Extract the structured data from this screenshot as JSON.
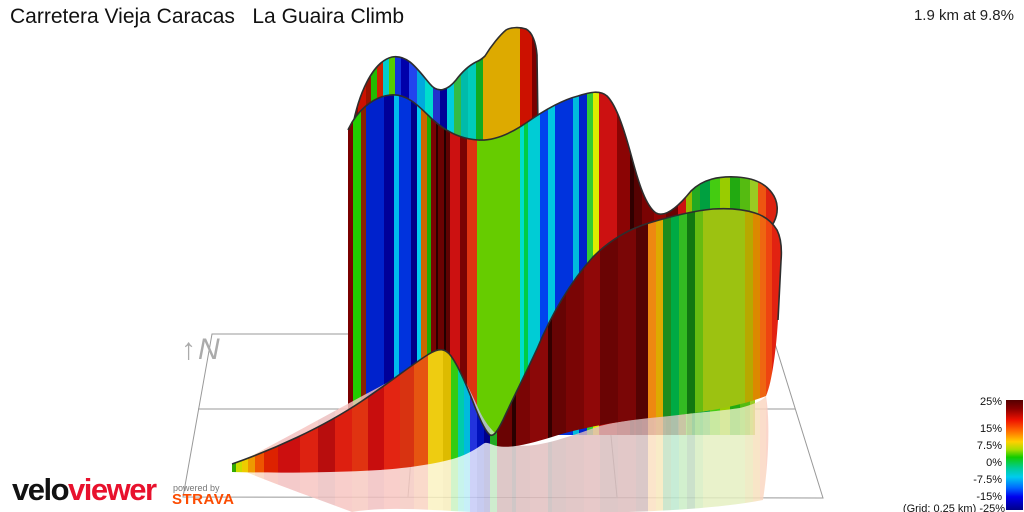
{
  "title": "Carretera Vieja Caracas   La Guaira Climb",
  "summary": "1.9 km at 9.8%",
  "north_label": "↑N",
  "legend": {
    "labels": [
      "25%",
      "15%",
      "7.5%",
      "0%",
      "-7.5%",
      "-15%",
      "-25%"
    ],
    "grid_note": "(Grid: 0.25 km) ",
    "last_label": "-25%",
    "colorbar_stops": [
      [
        0,
        "#550000"
      ],
      [
        8,
        "#8b0000"
      ],
      [
        18,
        "#ee1100"
      ],
      [
        28,
        "#ff6a00"
      ],
      [
        38,
        "#ffd000"
      ],
      [
        45,
        "#aadd00"
      ],
      [
        52,
        "#11cc00"
      ],
      [
        62,
        "#00cc99"
      ],
      [
        70,
        "#00ccee"
      ],
      [
        80,
        "#0066ff"
      ],
      [
        88,
        "#0000ee"
      ],
      [
        100,
        "#000088"
      ]
    ]
  },
  "branding": {
    "velo": "velo",
    "viewer": "viewer",
    "powered_by": "powered by",
    "strava": "STRAVA"
  },
  "chart_data": {
    "type": "area",
    "variant": "3d-elevation-ribbon",
    "title": "Carretera Vieja Caracas   La Guaira Climb",
    "distance_km": 1.9,
    "avg_gradient_pct": 9.8,
    "grid_km": 0.25,
    "gradient_scale_pct": [
      25,
      15,
      7.5,
      0,
      -7.5,
      -15,
      -25
    ],
    "profile_segments_km_grad": [
      [
        0,
        0.05,
        3
      ],
      [
        0.05,
        0.3,
        11
      ],
      [
        0.3,
        0.45,
        9
      ],
      [
        0.45,
        0.5,
        4
      ],
      [
        0.5,
        0.6,
        -12
      ],
      [
        0.6,
        0.85,
        22
      ],
      [
        0.85,
        0.95,
        8
      ],
      [
        0.95,
        1.1,
        5
      ],
      [
        1.1,
        1.2,
        -14
      ],
      [
        1.2,
        1.35,
        22
      ],
      [
        1.35,
        1.5,
        6
      ],
      [
        1.5,
        1.6,
        -10
      ],
      [
        1.6,
        1.75,
        20
      ],
      [
        1.75,
        1.9,
        12
      ]
    ],
    "ribbons": {
      "back": {
        "stripes": [
          [
            352,
            358,
            "#8b0000"
          ],
          [
            358,
            366,
            "#cc1100"
          ],
          [
            366,
            371,
            "#991100"
          ],
          [
            371,
            377,
            "#22bb00"
          ],
          [
            377,
            383,
            "#cc2200"
          ],
          [
            383,
            389,
            "#00cccc"
          ],
          [
            389,
            395,
            "#55cc00"
          ],
          [
            395,
            401,
            "#1133dd"
          ],
          [
            401,
            409,
            "#0000aa"
          ],
          [
            409,
            417,
            "#2244ee"
          ],
          [
            417,
            425,
            "#00aadd"
          ],
          [
            425,
            433,
            "#00ddcc"
          ],
          [
            433,
            440,
            "#2233cc"
          ],
          [
            440,
            447,
            "#000099"
          ],
          [
            447,
            454,
            "#00ccdd"
          ],
          [
            454,
            461,
            "#33bb44"
          ],
          [
            461,
            468,
            "#00bbaa"
          ],
          [
            468,
            476,
            "#00ccbb"
          ],
          [
            476,
            483,
            "#11aa22"
          ],
          [
            483,
            520,
            "#ddaa00"
          ],
          [
            520,
            532,
            "#cc1100"
          ],
          [
            532,
            540,
            "#7a0000"
          ]
        ]
      },
      "middle": {
        "stripes": [
          [
            348,
            353,
            "#7a0000"
          ],
          [
            353,
            361,
            "#22cc00"
          ],
          [
            361,
            366,
            "#882200"
          ],
          [
            366,
            384,
            "#0022cc"
          ],
          [
            384,
            394,
            "#000099"
          ],
          [
            394,
            399,
            "#00bbee"
          ],
          [
            399,
            411,
            "#0033dd"
          ],
          [
            411,
            417,
            "#000088"
          ],
          [
            417,
            421,
            "#00ccee"
          ],
          [
            421,
            427,
            "#cc6600"
          ],
          [
            427,
            431,
            "#22aa00"
          ],
          [
            431,
            436,
            "#7a0303"
          ],
          [
            436,
            438,
            "#2a0000"
          ],
          [
            438,
            444,
            "#6a0202"
          ],
          [
            444,
            446,
            "#200000"
          ],
          [
            446,
            450,
            "#5e0202"
          ],
          [
            450,
            460,
            "#cc1111"
          ],
          [
            460,
            467,
            "#7a0303"
          ],
          [
            467,
            477,
            "#dd3311"
          ],
          [
            477,
            520,
            "#66cc00"
          ],
          [
            520,
            524,
            "#00ddcc"
          ],
          [
            524,
            528,
            "#00cc44"
          ],
          [
            528,
            540,
            "#00ccd5"
          ],
          [
            540,
            548,
            "#0044ee"
          ],
          [
            548,
            555,
            "#00c8e0"
          ],
          [
            555,
            573,
            "#0033dd"
          ],
          [
            573,
            579,
            "#00bbdd"
          ],
          [
            579,
            587,
            "#0022cc"
          ],
          [
            587,
            593,
            "#33cc33"
          ],
          [
            593,
            599,
            "#dded00"
          ],
          [
            599,
            617,
            "#cc1111"
          ],
          [
            617,
            630,
            "#8b0404"
          ],
          [
            630,
            634,
            "#300000"
          ],
          [
            634,
            642,
            "#560202"
          ],
          [
            642,
            654,
            "#7a0303"
          ],
          [
            654,
            666,
            "#920505"
          ],
          [
            666,
            678,
            "#6a0303"
          ],
          [
            678,
            686,
            "#cc1111"
          ],
          [
            686,
            692,
            "#99bb00"
          ],
          [
            692,
            700,
            "#22aa22"
          ],
          [
            700,
            710,
            "#00a040"
          ],
          [
            710,
            720,
            "#44cc11"
          ],
          [
            720,
            730,
            "#99cc00"
          ],
          [
            730,
            740,
            "#22aa11"
          ],
          [
            740,
            750,
            "#55bb11"
          ],
          [
            750,
            758,
            "#99cc22"
          ],
          [
            758,
            766,
            "#ee5511"
          ],
          [
            766,
            779,
            "#dd2211"
          ]
        ]
      },
      "front": {
        "stripes": [
          [
            232,
            236,
            "#33aa00"
          ],
          [
            236,
            242,
            "#ccdd00"
          ],
          [
            242,
            248,
            "#eecc00"
          ],
          [
            248,
            255,
            "#ee9900"
          ],
          [
            255,
            264,
            "#ee5500"
          ],
          [
            264,
            278,
            "#dd2200"
          ],
          [
            278,
            300,
            "#cc0f0f"
          ],
          [
            300,
            318,
            "#dd2211"
          ],
          [
            318,
            335,
            "#b80d0d"
          ],
          [
            335,
            352,
            "#dd1f10"
          ],
          [
            352,
            368,
            "#e03311"
          ],
          [
            368,
            384,
            "#c80d0d"
          ],
          [
            384,
            400,
            "#e32512"
          ],
          [
            400,
            414,
            "#d83311"
          ],
          [
            414,
            428,
            "#e65511"
          ],
          [
            428,
            443,
            "#eecc11"
          ],
          [
            443,
            451,
            "#ddbb00"
          ],
          [
            451,
            458,
            "#33cc11"
          ],
          [
            458,
            464,
            "#00ccaa"
          ],
          [
            464,
            470,
            "#00bbdd"
          ],
          [
            470,
            477,
            "#2233dd"
          ],
          [
            477,
            484,
            "#0011bb"
          ],
          [
            484,
            490,
            "#000088"
          ],
          [
            490,
            497,
            "#22aa22"
          ],
          [
            497,
            512,
            "#6a0303"
          ],
          [
            512,
            516,
            "#2a0000"
          ],
          [
            516,
            530,
            "#7a0505"
          ],
          [
            530,
            548,
            "#8b0808"
          ],
          [
            548,
            552,
            "#330000"
          ],
          [
            552,
            566,
            "#660404"
          ],
          [
            566,
            584,
            "#7a0505"
          ],
          [
            584,
            600,
            "#900808"
          ],
          [
            600,
            618,
            "#6a0404"
          ],
          [
            618,
            636,
            "#7a0606"
          ],
          [
            636,
            648,
            "#550303"
          ],
          [
            648,
            656,
            "#ee8811"
          ],
          [
            656,
            663,
            "#ddaa00"
          ],
          [
            663,
            671,
            "#1d8c1d"
          ],
          [
            671,
            679,
            "#00aa44"
          ],
          [
            679,
            687,
            "#33bb22"
          ],
          [
            687,
            695,
            "#117711"
          ],
          [
            695,
            703,
            "#66bb11"
          ],
          [
            703,
            745,
            "#9cc211"
          ],
          [
            745,
            753,
            "#b8a800"
          ],
          [
            753,
            760,
            "#dd8800"
          ],
          [
            760,
            766,
            "#ee6611"
          ],
          [
            766,
            772,
            "#ee4411"
          ],
          [
            772,
            781,
            "#e22211"
          ]
        ]
      }
    }
  }
}
